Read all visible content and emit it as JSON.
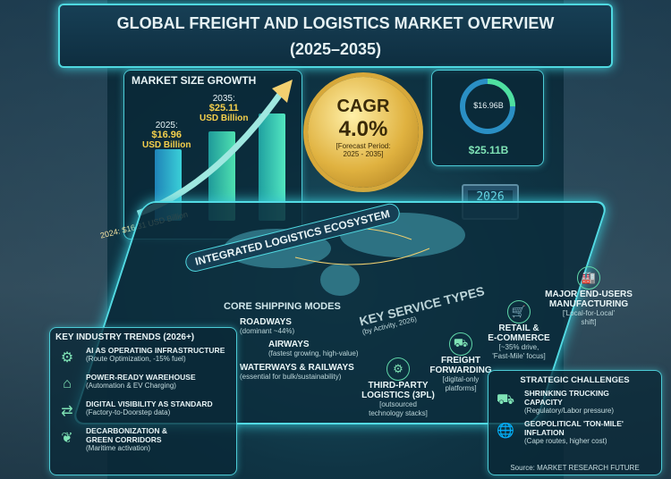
{
  "title": {
    "line1": "GLOBAL FREIGHT AND LOGISTICS MARKET OVERVIEW",
    "line2": "(2025–2035)"
  },
  "market": {
    "heading": "MARKET SIZE GROWTH",
    "y2025": {
      "year": "2025:",
      "value": "$16.96",
      "unit": "USD Billion"
    },
    "y2035": {
      "year": "2035:",
      "value": "$25.11",
      "unit": "USD Billion"
    },
    "y2024": "2024: $16.31 USD Billion"
  },
  "cagr": {
    "label": "CAGR",
    "value": "4.0%",
    "period1": "[Forecast Period:",
    "period2": "2025 - 2035]"
  },
  "ring": {
    "inner": "$16.96B",
    "outer": "$25.11B"
  },
  "terminal": "2026",
  "ecosystem": "INTEGRATED LOGISTICS ECOSYSTEM",
  "core": {
    "heading": "CORE SHIPPING MODES",
    "modes": [
      {
        "name": "ROADWAYS",
        "note": "(dominant ~44%)",
        "icon": "truck-icon"
      },
      {
        "name": "AIRWAYS",
        "note": "(fastest growing, high-value)",
        "icon": "airplane-icon"
      },
      {
        "name": "WATERWAYS & RAILWAYS",
        "note": "(essential for bulk/sustainability)",
        "icon": "ship-icon"
      }
    ]
  },
  "services": {
    "heading": "KEY SERVICE TYPES",
    "sub": "(by Activity, 2026)",
    "items": [
      {
        "name1": "THIRD-PARTY",
        "name2": "LOGISTICS (3PL)",
        "note1": "[outsourced",
        "note2": "technology stacks]",
        "icon": "gears-icon"
      },
      {
        "name1": "FREIGHT",
        "name2": "FORWARDING",
        "note1": "[digital-only",
        "note2": "platforms]",
        "icon": "truck-icon"
      },
      {
        "name1": "RETAIL &",
        "name2": "E-COMMERCE",
        "note1": "[~35% drive,",
        "note2": "'Fast-Mile' focus]",
        "icon": "cart-icon"
      },
      {
        "name1": "MAJOR END-USERS",
        "name2": "MANUFACTURING",
        "note1": "['Local-for-Local'",
        "note2": "shift]",
        "icon": "factory-icon"
      }
    ]
  },
  "trends": {
    "heading": "KEY INDUSTRY TRENDS (2026+)",
    "items": [
      {
        "title": "AI AS OPERATING INFRASTRUCTURE",
        "sub": "(Route Optimization, -15% fuel)",
        "icon": "gear-chip-icon"
      },
      {
        "title": "POWER-READY WAREHOUSE",
        "sub": "(Automation & EV Charging)",
        "icon": "warehouse-icon"
      },
      {
        "title": "DIGITAL VISIBILITY AS STANDARD",
        "sub": "(Factory-to-Doorstep data)",
        "icon": "tracking-icon"
      },
      {
        "title": "DECARBONIZATION &",
        "title2": "GREEN CORRIDORS",
        "sub": "(Maritime activation)",
        "icon": "leaf-icon"
      }
    ]
  },
  "challenges": {
    "heading": "STRATEGIC CHALLENGES",
    "items": [
      {
        "title": "SHRINKING TRUCKING",
        "title2": "CAPACITY",
        "sub": "(Regulatory/Labor pressure)",
        "icon": "truck-icon"
      },
      {
        "title": "GEOPOLITICAL 'TON-MILE'",
        "title2": "INFLATION",
        "sub": "(Cape routes, higher cost)",
        "icon": "globe-icon"
      }
    ]
  },
  "source": "Source: MARKET RESEARCH FUTURE",
  "colors": {
    "accent": "#4fd8e0",
    "gold": "#f5d04c",
    "green": "#7fe3b6",
    "bg": "#0f3444"
  }
}
